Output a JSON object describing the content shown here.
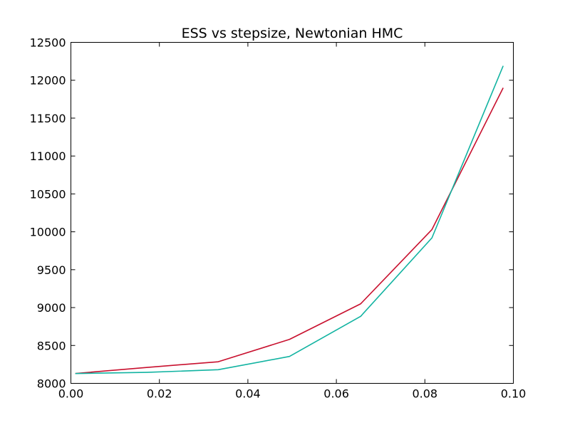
{
  "chart_data": {
    "type": "line",
    "title": "ESS vs stepsize, Newtonian HMC",
    "xlabel": "",
    "ylabel": "",
    "xlim": [
      0.0,
      0.1
    ],
    "ylim": [
      8000,
      12500
    ],
    "xticks": [
      0.0,
      0.02,
      0.04,
      0.06,
      0.08,
      0.1
    ],
    "xtick_labels": [
      "0.00",
      "0.02",
      "0.04",
      "0.06",
      "0.08",
      "0.10"
    ],
    "yticks": [
      8000,
      8500,
      9000,
      9500,
      10000,
      10500,
      11000,
      11500,
      12000,
      12500
    ],
    "ytick_labels": [
      "8000",
      "8500",
      "9000",
      "9500",
      "10000",
      "10500",
      "11000",
      "11500",
      "12000",
      "12500"
    ],
    "grid": false,
    "legend": "none",
    "x": [
      0.001,
      0.0171,
      0.0333,
      0.0494,
      0.0655,
      0.0816,
      0.0977
    ],
    "series": [
      {
        "color": "#c8102e",
        "values": [
          8130,
          8210,
          8285,
          8580,
          9050,
          10030,
          11900
        ]
      },
      {
        "color": "#11b3a1",
        "values": [
          8130,
          8145,
          8180,
          8355,
          8885,
          9920,
          12190
        ]
      }
    ]
  }
}
